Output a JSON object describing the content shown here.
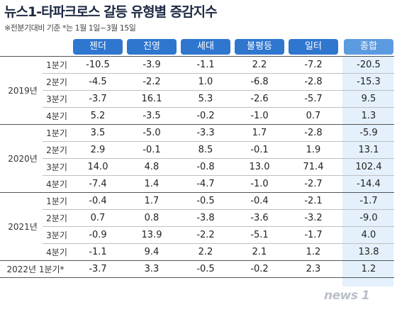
{
  "title": "뉴스1-타파크로스 갈등 유형별 증감지수",
  "subtitle": "※전분기대비 기준 *는 1월 1일~3월 15일",
  "columns": [
    "젠더",
    "진영",
    "세대",
    "불평등",
    "일터",
    "종합"
  ],
  "groups": [
    {
      "year": "2019년",
      "rows": [
        {
          "q": "1분기",
          "v": [
            "-10.5",
            "-3.9",
            "-1.1",
            "2.2",
            "-7.2",
            "-20.5"
          ]
        },
        {
          "q": "2분기",
          "v": [
            "-4.5",
            "-2.2",
            "1.0",
            "-6.8",
            "-2.8",
            "-15.3"
          ]
        },
        {
          "q": "3분기",
          "v": [
            "-3.7",
            "16.1",
            "5.3",
            "-2.6",
            "-5.7",
            "9.5"
          ]
        },
        {
          "q": "4분기",
          "v": [
            "5.2",
            "-3.5",
            "-0.2",
            "-1.0",
            "0.7",
            "1.3"
          ]
        }
      ]
    },
    {
      "year": "2020년",
      "rows": [
        {
          "q": "1분기",
          "v": [
            "3.5",
            "-5.0",
            "-3.3",
            "1.7",
            "-2.8",
            "-5.9"
          ]
        },
        {
          "q": "2분기",
          "v": [
            "2.9",
            "-0.1",
            "8.5",
            "-0.1",
            "1.9",
            "13.1"
          ]
        },
        {
          "q": "3분기",
          "v": [
            "14.0",
            "4.8",
            "-0.8",
            "13.0",
            "71.4",
            "102.4"
          ]
        },
        {
          "q": "4분기",
          "v": [
            "-7.4",
            "1.4",
            "-4.7",
            "-1.0",
            "-2.7",
            "-14.4"
          ]
        }
      ]
    },
    {
      "year": "2021년",
      "rows": [
        {
          "q": "1분기",
          "v": [
            "-0.4",
            "1.7",
            "-0.5",
            "-0.4",
            "-2.1",
            "-1.7"
          ]
        },
        {
          "q": "2분기",
          "v": [
            "0.7",
            "0.8",
            "-3.8",
            "-3.6",
            "-3.2",
            "-9.0"
          ]
        },
        {
          "q": "3분기",
          "v": [
            "-0.9",
            "13.9",
            "-2.2",
            "-5.1",
            "-1.7",
            "4.0"
          ]
        },
        {
          "q": "4분기",
          "v": [
            "-1.1",
            "9.4",
            "2.2",
            "2.1",
            "1.2",
            "13.8"
          ]
        }
      ]
    }
  ],
  "last_row": {
    "label": "2022년 1분기*",
    "v": [
      "-3.7",
      "3.3",
      "-0.5",
      "-0.2",
      "2.3",
      "1.2"
    ]
  },
  "logo": "news 1",
  "colors": {
    "header": "#2f76cf",
    "header_total": "#5c9be0",
    "total_bg": "#e4f0fb",
    "title": "#1f2a44"
  }
}
